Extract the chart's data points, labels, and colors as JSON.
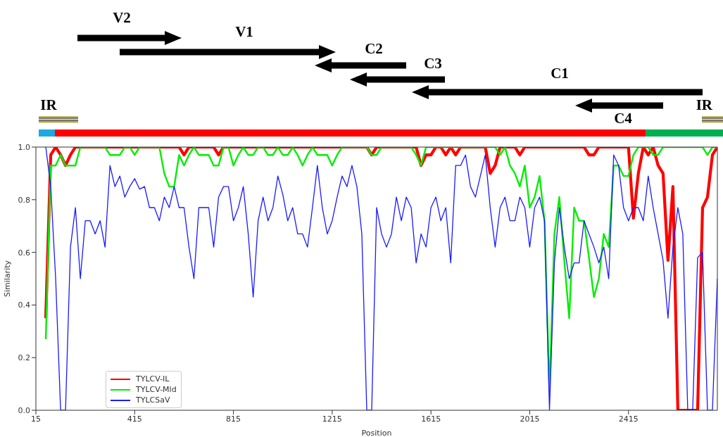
{
  "chart_data": {
    "type": "line",
    "xlabel": "Position",
    "ylabel": "Similarity",
    "annotations": [
      "V2",
      "V1",
      "C2",
      "C3",
      "C1",
      "C4",
      "IR",
      "IR"
    ],
    "xlim": [
      15,
      2775
    ],
    "xticks": [
      15,
      415,
      815,
      1215,
      1615,
      2015,
      2415
    ],
    "ylim": [
      0,
      1
    ],
    "yticks": [
      {
        "value": 0,
        "label": "0.0"
      },
      {
        "value": 0.2,
        "label": "0.2"
      },
      {
        "value": 0.4,
        "label": "0.4"
      },
      {
        "value": 0.6,
        "label": "0.6"
      },
      {
        "value": 0.8,
        "label": "0.8"
      },
      {
        "value": 1,
        "label": "1.0"
      }
    ],
    "legend": "bottom left",
    "line_style": "solid",
    "x": [
      55,
      75,
      95,
      115,
      135,
      155,
      175,
      195,
      215,
      235,
      255,
      275,
      295,
      315,
      335,
      355,
      375,
      395,
      415,
      435,
      455,
      475,
      495,
      515,
      535,
      555,
      575,
      595,
      615,
      635,
      655,
      675,
      695,
      715,
      735,
      755,
      775,
      795,
      815,
      835,
      855,
      875,
      895,
      915,
      935,
      955,
      975,
      995,
      1015,
      1035,
      1055,
      1075,
      1095,
      1115,
      1135,
      1155,
      1175,
      1195,
      1215,
      1235,
      1255,
      1275,
      1295,
      1315,
      1335,
      1355,
      1375,
      1395,
      1415,
      1435,
      1455,
      1475,
      1495,
      1515,
      1535,
      1555,
      1575,
      1595,
      1615,
      1635,
      1655,
      1675,
      1695,
      1715,
      1735,
      1755,
      1775,
      1795,
      1815,
      1835,
      1855,
      1875,
      1895,
      1915,
      1935,
      1955,
      1975,
      1995,
      2015,
      2035,
      2055,
      2075,
      2095,
      2115,
      2135,
      2155,
      2175,
      2195,
      2215,
      2235,
      2255,
      2275,
      2295,
      2315,
      2335,
      2355,
      2375,
      2395,
      2415,
      2435,
      2455,
      2475,
      2495,
      2515,
      2535,
      2555,
      2575,
      2595,
      2615,
      2635,
      2655,
      2675,
      2695,
      2715,
      2735,
      2755,
      2775
    ],
    "series": [
      {
        "name": "TYLCV-IL",
        "color": "#ff0000",
        "values": [
          0.35,
          0.97,
          1,
          0.97,
          0.93,
          0.97,
          1,
          1,
          1,
          1,
          1,
          1,
          1,
          1,
          1,
          1,
          1,
          1,
          1,
          1,
          1,
          1,
          1,
          1,
          1,
          1,
          1,
          1,
          0.97,
          1,
          1,
          1,
          1,
          1,
          1,
          0.97,
          1,
          1,
          1,
          1,
          1,
          1,
          1,
          1,
          1,
          1,
          1,
          1,
          1,
          1,
          1,
          1,
          1,
          1,
          1,
          1,
          1,
          1,
          1,
          1,
          1,
          1,
          1,
          1,
          1,
          1,
          0.97,
          1,
          1,
          1,
          1,
          1,
          1,
          1,
          1,
          1,
          0.93,
          0.97,
          0.97,
          1,
          1,
          0.97,
          1,
          0.97,
          1,
          1,
          1,
          1,
          1,
          1,
          0.9,
          0.93,
          1,
          1,
          1,
          1,
          0.97,
          1,
          1,
          1,
          1,
          1,
          1,
          1,
          1,
          1,
          1,
          1,
          1,
          1,
          0.97,
          0.97,
          1,
          1,
          1,
          1,
          1,
          1,
          1,
          0.73,
          0.9,
          1,
          0.97,
          1,
          0.93,
          0.9,
          0.57,
          0.85,
          0,
          0,
          0,
          0,
          0,
          0.77,
          0.81,
          0.97,
          1
        ]
      },
      {
        "name": "TYLCV-Mld",
        "color": "#00ee00",
        "values": [
          0.27,
          0.93,
          0.93,
          0.97,
          0.93,
          0.93,
          0.93,
          1,
          1,
          1,
          1,
          1,
          1,
          0.97,
          0.97,
          0.97,
          1,
          1,
          0.97,
          1,
          1,
          1,
          1,
          1,
          0.9,
          0.85,
          0.85,
          0.97,
          0.93,
          0.97,
          1,
          0.97,
          0.97,
          0.97,
          0.93,
          0.93,
          1,
          1,
          0.93,
          0.97,
          1,
          0.97,
          0.97,
          1,
          1,
          0.97,
          0.97,
          1,
          0.97,
          0.97,
          1,
          0.97,
          0.93,
          0.97,
          1,
          0.97,
          0.97,
          0.97,
          0.93,
          0.97,
          1,
          1,
          1,
          1,
          1,
          1,
          0.97,
          0.97,
          1,
          1,
          1,
          1,
          1,
          1,
          1,
          0.97,
          0.93,
          1,
          1,
          1,
          1,
          1,
          1,
          1,
          1,
          1,
          1,
          1,
          1,
          1,
          1,
          1,
          0.97,
          1,
          0.93,
          0.9,
          0.85,
          0.93,
          0.77,
          0.81,
          0.89,
          0.72,
          0.07,
          0.67,
          0.81,
          0.57,
          0.35,
          0.77,
          0.72,
          0.72,
          0.58,
          0.43,
          0.5,
          0.67,
          0.62,
          0.93,
          0.93,
          0.89,
          0.89,
          0.97,
          1,
          1,
          1,
          0.97,
          0.97,
          1,
          1,
          1,
          1,
          1,
          1,
          1,
          1,
          1,
          0.97,
          1,
          1
        ]
      },
      {
        "name": "TYLCSaV",
        "color": "#1a1aff",
        "values": [
          1,
          0.85,
          0.5,
          0,
          0,
          0.62,
          0.77,
          0.5,
          0.72,
          0.72,
          0.67,
          0.72,
          0.62,
          0.93,
          0.85,
          0.89,
          0.81,
          0.85,
          0.88,
          0.84,
          0.85,
          0.77,
          0.77,
          0.72,
          0.81,
          0.77,
          0.85,
          0.77,
          0.77,
          0.62,
          0.5,
          0.77,
          0.77,
          0.77,
          0.62,
          0.81,
          0.85,
          0.85,
          0.72,
          0.77,
          0.85,
          0.67,
          0.43,
          0.72,
          0.81,
          0.72,
          0.77,
          0.89,
          0.82,
          0.72,
          0.77,
          0.67,
          0.67,
          0.62,
          0.77,
          0.93,
          0.77,
          0.67,
          0.72,
          0.81,
          0.89,
          0.85,
          0.93,
          0.85,
          0.67,
          0,
          0,
          0.77,
          0.67,
          0.62,
          0.67,
          0.81,
          0.72,
          0.81,
          0.77,
          0.56,
          0.67,
          0.62,
          0.77,
          0.81,
          0.72,
          0.77,
          0.56,
          0.93,
          0.93,
          0.97,
          0.85,
          0.81,
          0.89,
          0.97,
          0.77,
          0.62,
          0.77,
          0.81,
          0.72,
          0.72,
          0.81,
          0.77,
          0.62,
          0.77,
          0.81,
          0.72,
          0,
          0.56,
          0.77,
          0.62,
          0.5,
          0.56,
          0.56,
          0.72,
          0.67,
          0.62,
          0.56,
          0.62,
          0.5,
          0.97,
          0.93,
          0.77,
          0.72,
          0.77,
          0.77,
          0.72,
          0.89,
          0.77,
          0.67,
          0.57,
          0.35,
          0.62,
          0.77,
          0.67,
          0,
          0,
          0.58,
          0.6,
          0,
          0,
          0.5
        ]
      }
    ]
  }
}
